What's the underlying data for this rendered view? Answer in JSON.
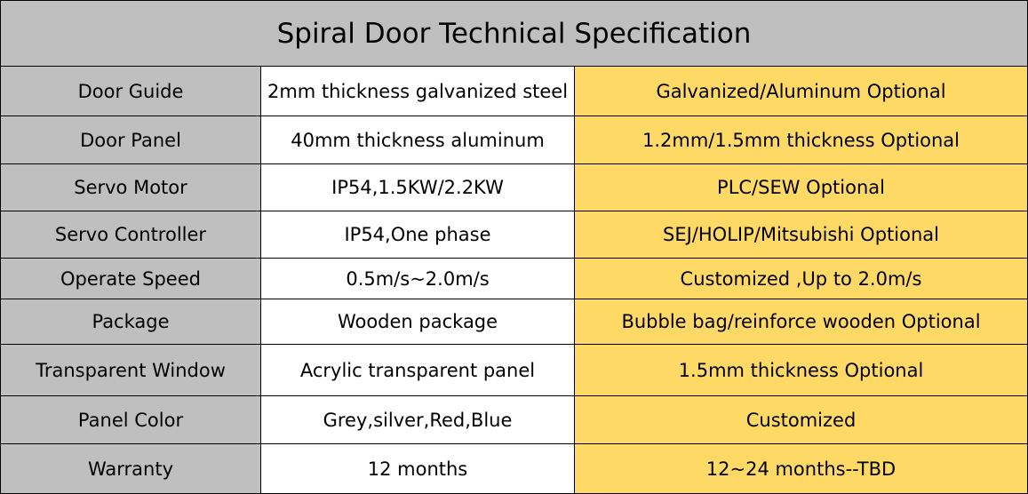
{
  "header": {
    "title": "Spiral Door Technical Specification"
  },
  "table": {
    "rows": [
      [
        "Door Guide",
        "2mm thickness galvanized steel",
        "Galvanized/Aluminum Optional"
      ],
      [
        "Door Panel",
        "40mm thickness aluminum",
        "1.2mm/1.5mm thickness Optional"
      ],
      [
        "Servo Motor",
        "IP54,1.5KW/2.2KW",
        "PLC/SEW Optional"
      ],
      [
        "Servo Controller",
        "IP54,One phase",
        "SEJ/HOLIP/Mitsubishi Optional"
      ],
      [
        "Operate Speed",
        "0.5m/s~2.0m/s",
        "Customized ,Up to 2.0m/s"
      ],
      [
        "Package",
        "Wooden package",
        "Bubble bag/reinforce wooden Optional"
      ],
      [
        "Transparent Window",
        "Acrylic transparent panel",
        "1.5mm thickness Optional"
      ],
      [
        "Panel Color",
        "Grey,silver,Red,Blue",
        "Customized"
      ],
      [
        "Warranty",
        "12 months",
        "12~24 months--TBD"
      ]
    ]
  }
}
